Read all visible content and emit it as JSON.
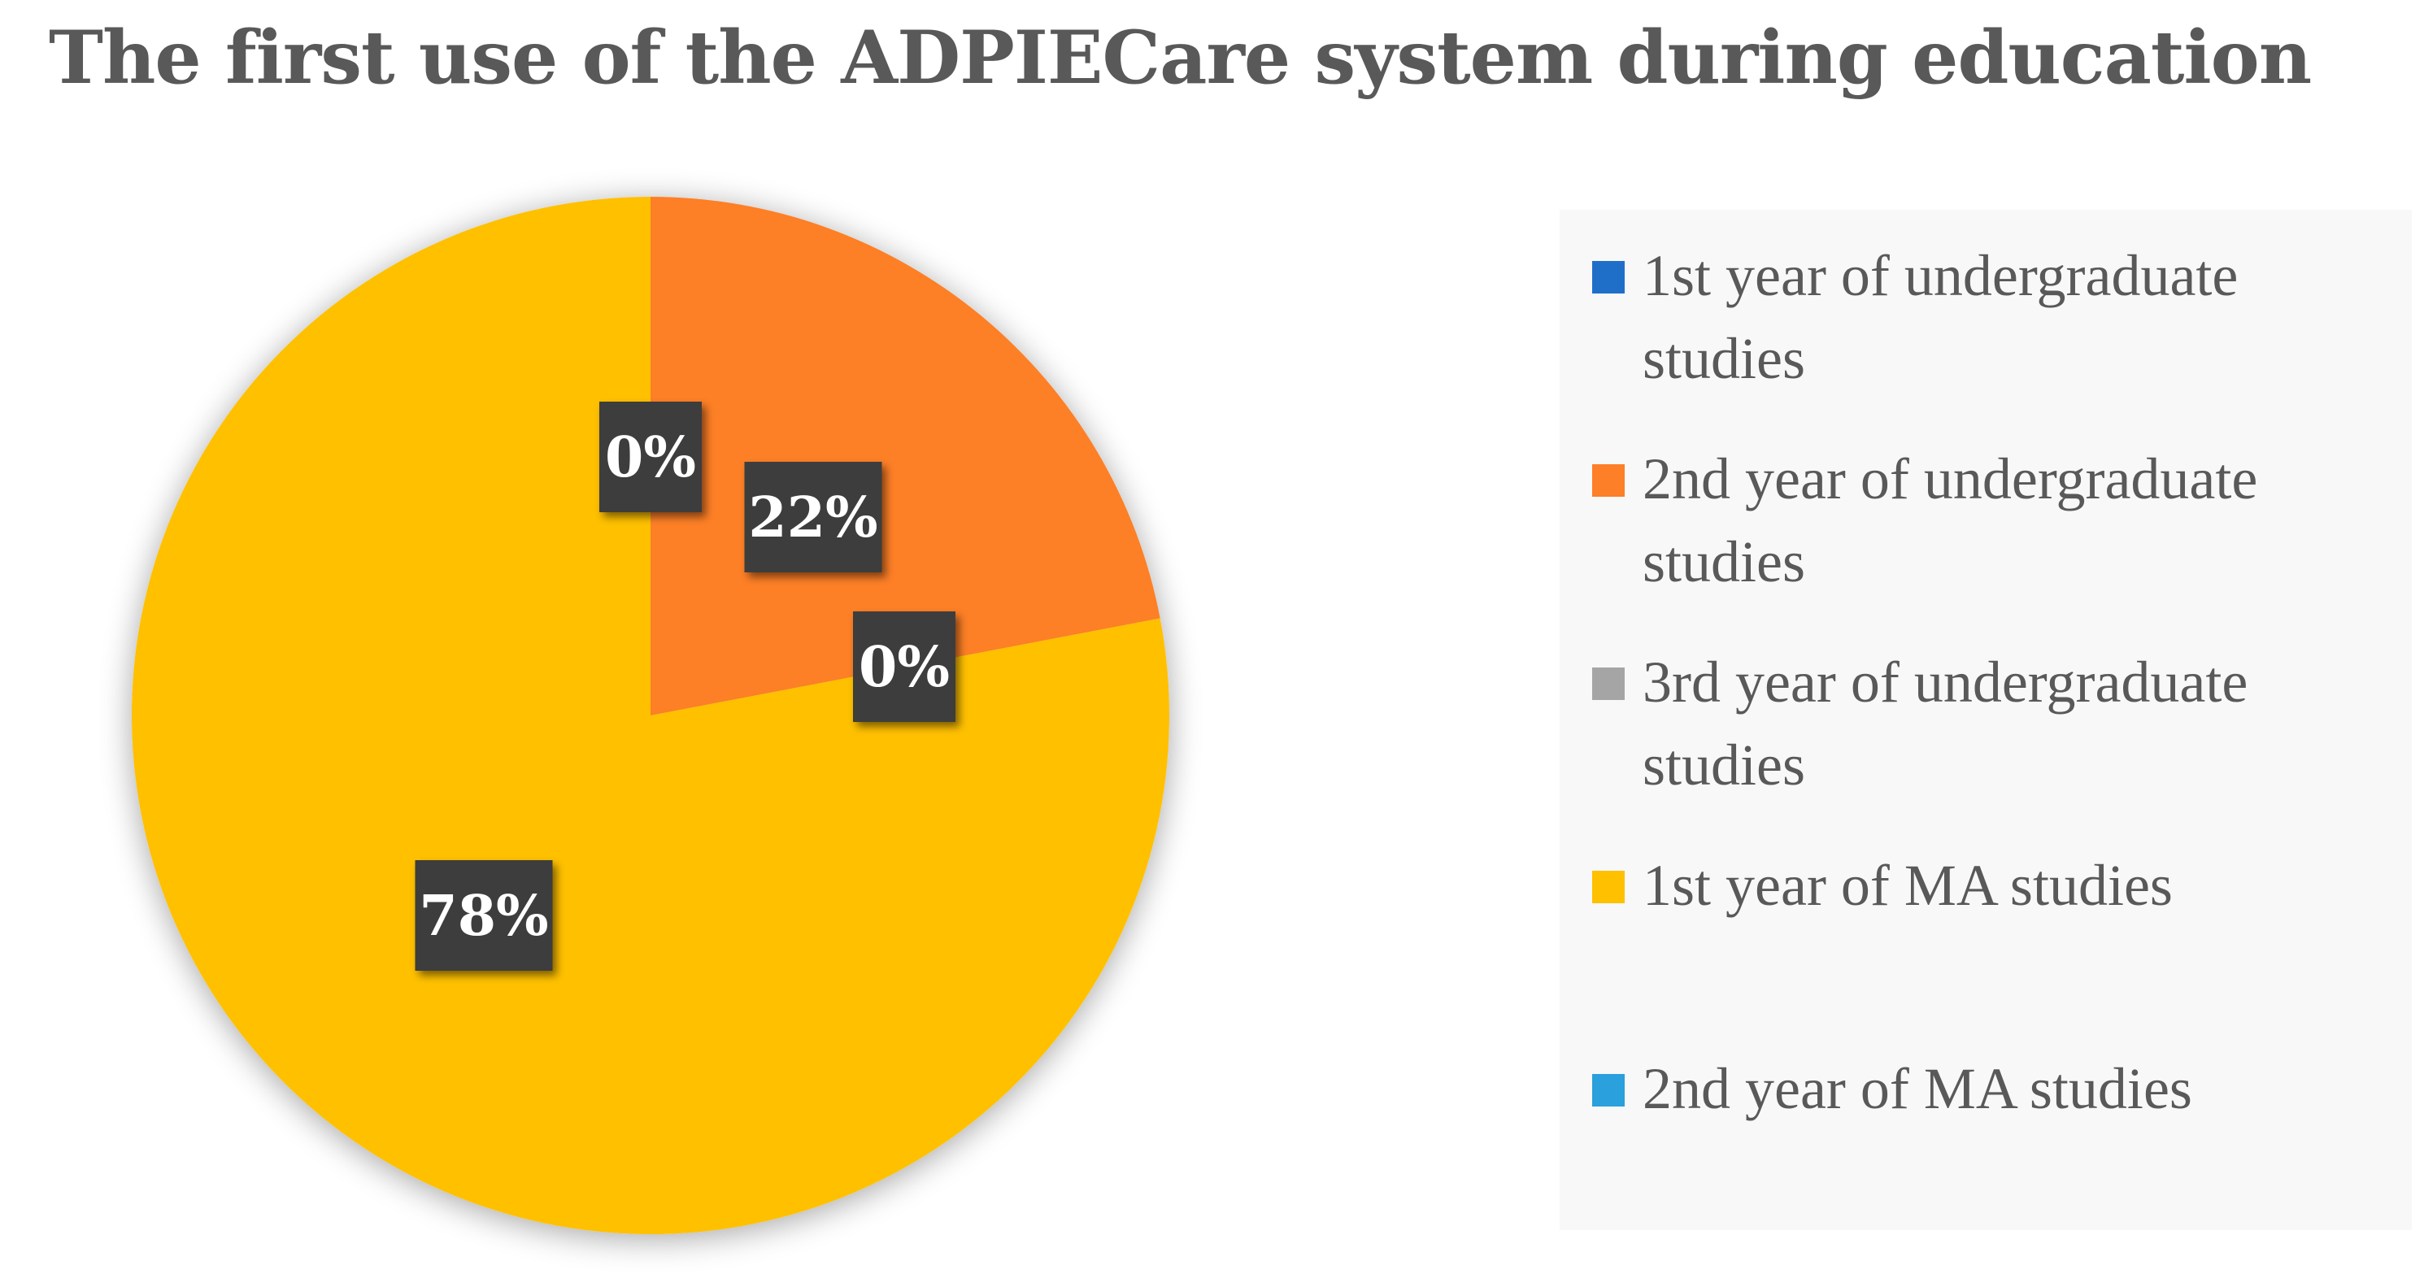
{
  "chart_data": {
    "type": "pie",
    "title": "The first use of the ADPIECare system during education",
    "categories": [
      "1st year of undergraduate studies",
      "2nd year of undergraduate studies",
      "3rd year of undergraduate studies",
      "1st year of MA studies",
      "2nd year of MA studies"
    ],
    "values": [
      0,
      22,
      0,
      78,
      0
    ],
    "data_labels": [
      "0%",
      "22%",
      "0%",
      "78%",
      ""
    ],
    "colors": [
      "#1f6fc9",
      "#fd7f27",
      "#a5a5a5",
      "#ffc000",
      "#2aa0dc"
    ],
    "legend_position": "right"
  }
}
